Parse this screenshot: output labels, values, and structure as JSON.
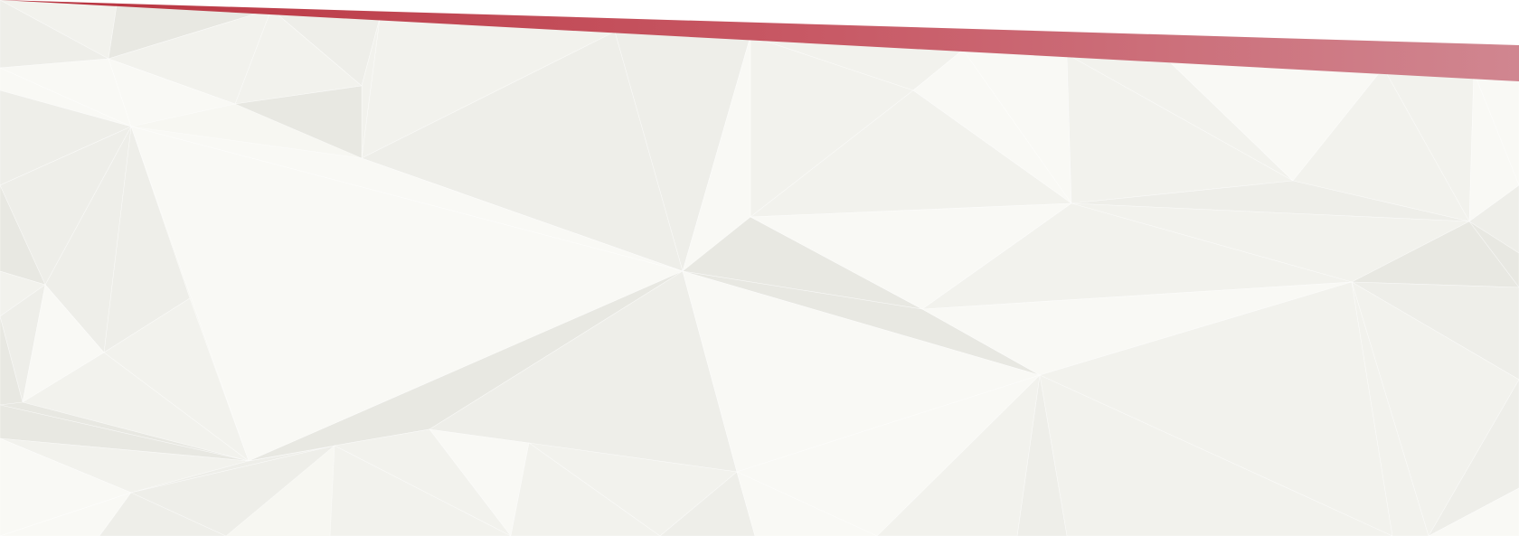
{
  "background": {
    "pattern": "low-poly-triangles",
    "palette": {
      "base": "#f7f7f2",
      "light": "#f9f9f5",
      "mid": "#f2f2ed",
      "soft": "#eeeee9",
      "shade": "#e8e8e2"
    }
  },
  "ribbon": {
    "gradient_start": "#b8323e",
    "gradient_mid": "#c85a66",
    "gradient_end": "#d08690",
    "overlay": "#ffffff"
  }
}
